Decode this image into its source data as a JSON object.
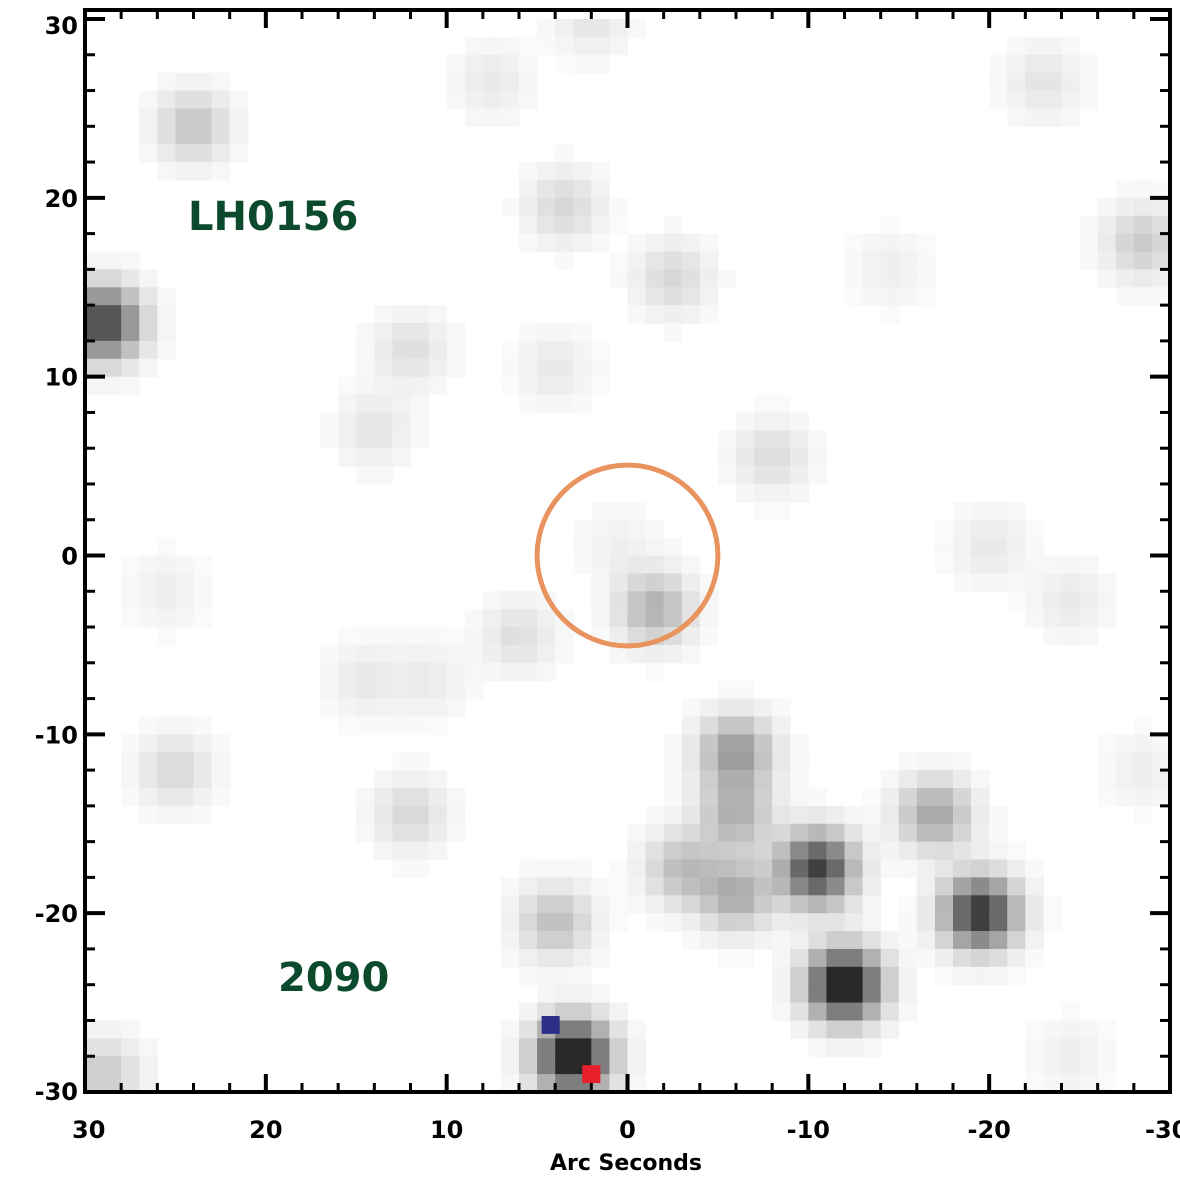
{
  "image": {
    "type": "astronomical-finding-chart",
    "colormap": "inverted-grayscale",
    "annotations": [
      {
        "text": "LH0156",
        "color": "#0b4a2c"
      },
      {
        "text": "2090",
        "color": "#0b4a2c"
      }
    ],
    "circle": {
      "center": [
        0,
        0
      ],
      "radius_arcsec": 5,
      "color": "#e9945e"
    }
  },
  "chart_data": {
    "type": "heatmap",
    "title": "",
    "xlabel": "Arc Seconds",
    "ylabel": "",
    "xlim": [
      30,
      -30
    ],
    "ylim": [
      -30,
      30
    ],
    "x_ticks": [
      "30",
      "20",
      "10",
      "0",
      "-10",
      "-20",
      "-30"
    ],
    "y_ticks": [
      "30",
      "20",
      "10",
      "0",
      "-10",
      "-20",
      "-30"
    ],
    "grid": false,
    "sources": [
      {
        "x": 24,
        "y": 24,
        "peak": 0.22
      },
      {
        "x": 29,
        "y": 13,
        "peak": 0.75
      },
      {
        "x": 3.5,
        "y": 19.5,
        "peak": 0.15
      },
      {
        "x": -2.5,
        "y": 15.5,
        "peak": 0.15
      },
      {
        "x": 12,
        "y": 11.5,
        "peak": 0.12
      },
      {
        "x": 14,
        "y": 7,
        "peak": 0.1
      },
      {
        "x": -8,
        "y": 5.5,
        "peak": 0.13
      },
      {
        "x": 4,
        "y": 10.5,
        "peak": 0.08
      },
      {
        "x": -1.5,
        "y": -3,
        "peak": 0.3
      },
      {
        "x": 6,
        "y": -4.5,
        "peak": 0.12
      },
      {
        "x": 14.5,
        "y": -7,
        "peak": 0.08
      },
      {
        "x": 11,
        "y": -7,
        "peak": 0.07
      },
      {
        "x": 25,
        "y": -12,
        "peak": 0.15
      },
      {
        "x": 12,
        "y": -14.5,
        "peak": 0.15
      },
      {
        "x": -6,
        "y": -11,
        "peak": 0.4
      },
      {
        "x": -6,
        "y": -14.5,
        "peak": 0.3
      },
      {
        "x": -6,
        "y": -19,
        "peak": 0.32
      },
      {
        "x": -3,
        "y": -17.5,
        "peak": 0.25
      },
      {
        "x": -10.5,
        "y": -17.5,
        "peak": 0.75
      },
      {
        "x": -17,
        "y": -14.5,
        "peak": 0.35
      },
      {
        "x": -19.5,
        "y": -20,
        "peak": 0.8
      },
      {
        "x": -12,
        "y": -24,
        "peak": 0.95
      },
      {
        "x": 4,
        "y": -20.5,
        "peak": 0.25
      },
      {
        "x": 3,
        "y": -28,
        "peak": 0.95
      },
      {
        "x": 29,
        "y": -29,
        "peak": 0.2
      },
      {
        "x": -28.5,
        "y": 17.5,
        "peak": 0.2
      },
      {
        "x": -23,
        "y": 26.5,
        "peak": 0.1
      },
      {
        "x": -20,
        "y": 0.5,
        "peak": 0.08
      },
      {
        "x": -24.5,
        "y": -2.5,
        "peak": 0.08
      },
      {
        "x": 7.5,
        "y": 26.5,
        "peak": 0.08
      },
      {
        "x": 25.5,
        "y": -2,
        "peak": 0.06
      },
      {
        "x": 0.5,
        "y": 0.5,
        "peak": 0.05
      },
      {
        "x": -14.5,
        "y": 16,
        "peak": 0.06
      },
      {
        "x": -28.5,
        "y": -12,
        "peak": 0.06
      },
      {
        "x": -24.5,
        "y": -28,
        "peak": 0.06
      },
      {
        "x": 2,
        "y": 30,
        "peak": 0.1
      }
    ],
    "marker_pixels": [
      {
        "x": 4.25,
        "y": -26.25,
        "color": "#2b2e86"
      },
      {
        "x": 2.0,
        "y": -29.0,
        "color": "#e8202a"
      }
    ]
  }
}
